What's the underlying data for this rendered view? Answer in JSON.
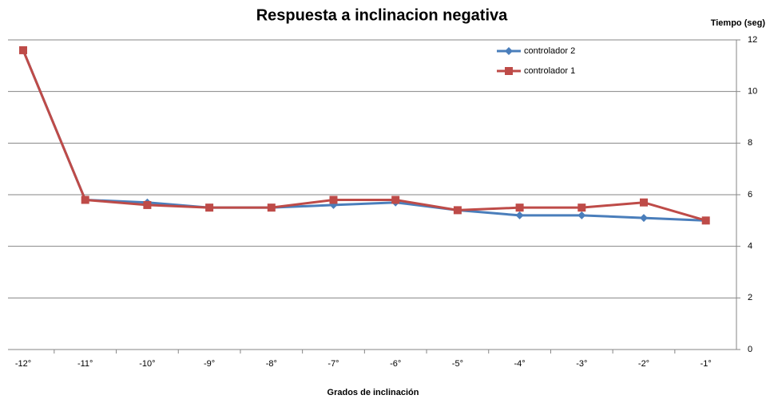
{
  "chart_data": {
    "type": "line",
    "title": "Respuesta a inclinacion negativa",
    "y_label": "Tiempo (seg)",
    "x_label": "Grados de inclinación",
    "categories": [
      "-12°",
      "-11°",
      "-10°",
      "-9°",
      "-8°",
      "-7°",
      "-6°",
      "-5°",
      "-4°",
      "-3°",
      "-2°",
      "-1°"
    ],
    "series": [
      {
        "name": "controlador 2",
        "color": "#4a7ebb",
        "marker": "diamond",
        "values": [
          11.6,
          5.8,
          5.7,
          5.5,
          5.5,
          5.6,
          5.7,
          5.4,
          5.2,
          5.2,
          5.1,
          5.0
        ]
      },
      {
        "name": "controlador 1",
        "color": "#be4b48",
        "marker": "square",
        "values": [
          11.6,
          5.8,
          5.6,
          5.5,
          5.5,
          5.8,
          5.8,
          5.4,
          5.5,
          5.5,
          5.7,
          5.0
        ]
      }
    ],
    "ylim": [
      0,
      12
    ],
    "yticks": [
      0,
      2,
      4,
      6,
      8,
      10,
      12
    ],
    "grid": true,
    "legend": "top-right"
  }
}
